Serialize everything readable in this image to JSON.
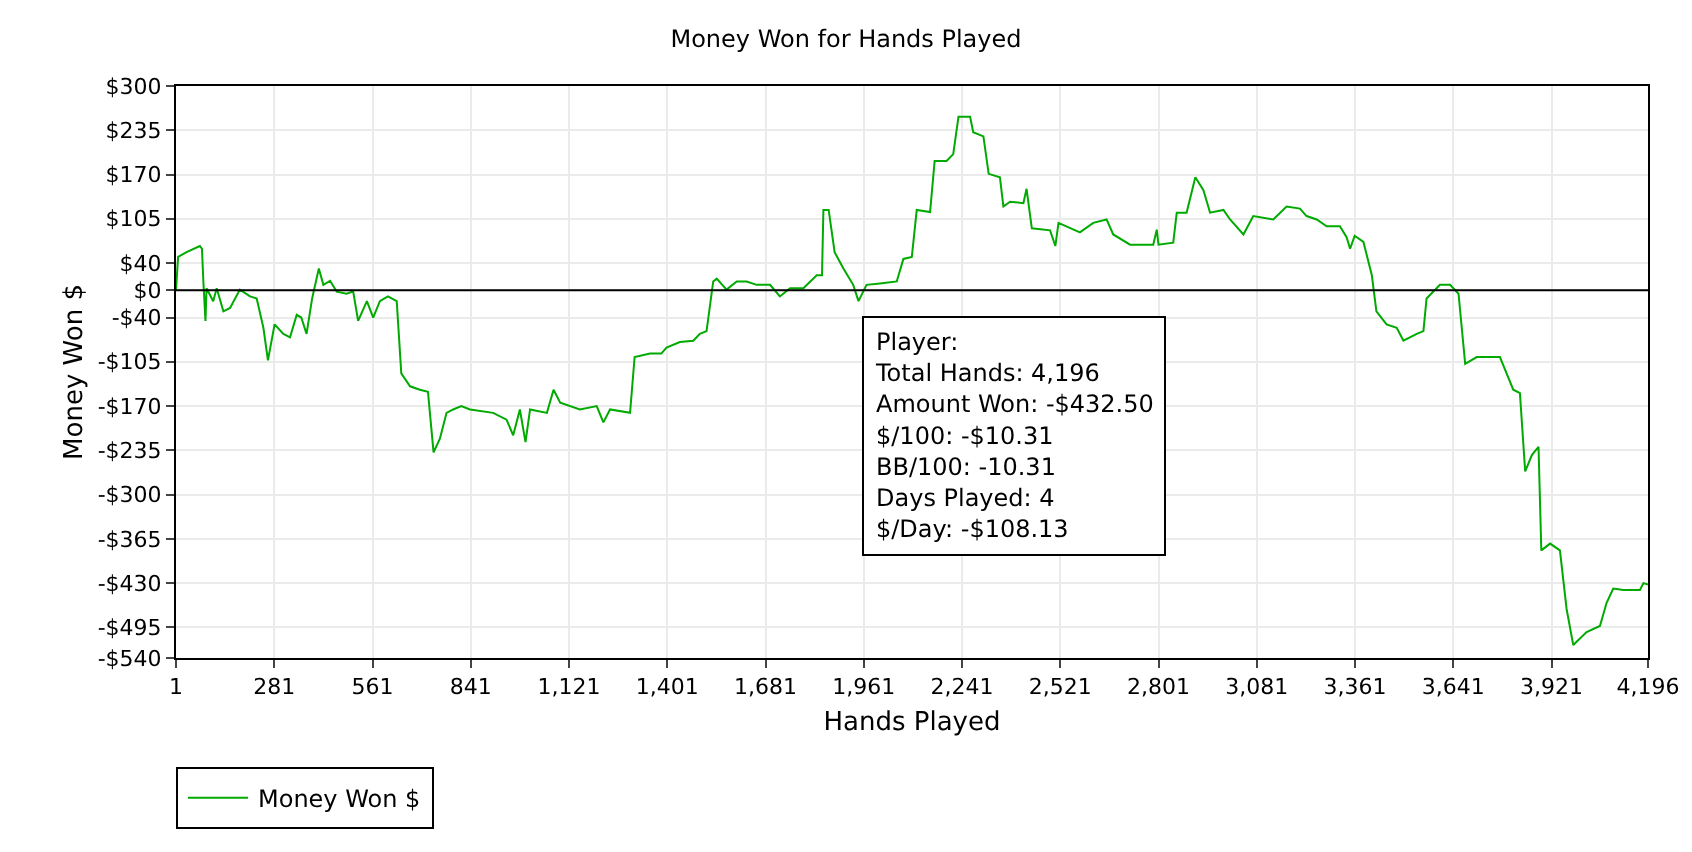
{
  "chart_data": {
    "type": "line",
    "title": "Money Won for Hands Played",
    "xlabel": "Hands Played",
    "ylabel": "Money Won $",
    "annotations": [
      "Player:\nTotal Hands: 4,196\nAmount Won: -$432.50\n$/100: -$10.31\nBB/100: -10.31\nDays Played: 4\n$/Day: -$108.13"
    ],
    "series": [
      {
        "name": "Money Won $",
        "color": "#00aa00",
        "x": [
          1,
          7,
          31,
          69,
          75,
          79,
          85,
          88,
          107,
          117,
          136,
          155,
          183,
          212,
          231,
          250,
          263,
          282,
          307,
          326,
          345,
          358,
          373,
          389,
          408,
          421,
          440,
          459,
          487,
          506,
          520,
          545,
          563,
          582,
          605,
          630,
          643,
          668,
          696,
          719,
          735,
          753,
          772,
          791,
          814,
          839,
          905,
          943,
          962,
          981,
          997,
          1010,
          1058,
          1077,
          1096,
          1152,
          1200,
          1219,
          1238,
          1295,
          1308,
          1352,
          1384,
          1399,
          1437,
          1475,
          1494,
          1513,
          1532,
          1542,
          1570,
          1599,
          1627,
          1656,
          1694,
          1722,
          1751,
          1789,
          1827,
          1842,
          1846,
          1861,
          1878,
          1903,
          1931,
          1946,
          1969,
          2007,
          2055,
          2074,
          2098,
          2112,
          2150,
          2163,
          2197,
          2216,
          2231,
          2264,
          2273,
          2302,
          2317,
          2349,
          2359,
          2378,
          2416,
          2425,
          2440,
          2492,
          2507,
          2516,
          2577,
          2615,
          2653,
          2672,
          2720,
          2786,
          2796,
          2801,
          2843,
          2853,
          2881,
          2906,
          2929,
          2948,
          2986,
          3005,
          3043,
          3071,
          3128,
          3166,
          3204,
          3223,
          3252,
          3280,
          3318,
          3337,
          3347,
          3360,
          3385,
          3409,
          3422,
          3451,
          3480,
          3499,
          3537,
          3556,
          3565,
          3603,
          3632,
          3656,
          3675,
          3708,
          3774,
          3793,
          3812,
          3831,
          3846,
          3865,
          3884,
          3892,
          3917,
          3945,
          3964,
          3983,
          4021,
          4059,
          4078,
          4097,
          4126,
          4173,
          4183,
          4196
        ],
        "values": [
          0,
          49,
          56,
          65,
          61,
          13,
          -45,
          3,
          -16,
          3,
          -31,
          -26,
          1,
          -9,
          -12,
          -55,
          -103,
          -50,
          -64,
          -69,
          -36,
          -40,
          -64,
          -12,
          32,
          8,
          14,
          -2,
          -5,
          -2,
          -45,
          -16,
          -40,
          -16,
          -9,
          -16,
          -122,
          -141,
          -146,
          -149,
          -238,
          -218,
          -180,
          -175,
          -170,
          -175,
          -180,
          -190,
          -213,
          -175,
          -223,
          -175,
          -180,
          -146,
          -165,
          -175,
          -170,
          -194,
          -175,
          -180,
          -98,
          -93,
          -93,
          -84,
          -76,
          -74,
          -64,
          -60,
          13,
          17,
          1,
          13,
          13,
          8,
          8,
          -9,
          3,
          3,
          22,
          22,
          118,
          118,
          56,
          32,
          8,
          -16,
          8,
          10,
          13,
          46,
          49,
          118,
          115,
          190,
          190,
          200,
          255,
          255,
          232,
          226,
          171,
          166,
          123,
          130,
          128,
          149,
          91,
          88,
          65,
          99,
          85,
          99,
          104,
          82,
          67,
          67,
          89,
          67,
          70,
          114,
          114,
          166,
          147,
          114,
          118,
          104,
          82,
          109,
          104,
          123,
          120,
          109,
          104,
          94,
          94,
          78,
          61,
          80,
          71,
          22,
          -31,
          -50,
          -55,
          -74,
          -64,
          -60,
          -12,
          8,
          8,
          -5,
          -108,
          -98,
          -98,
          -122,
          -146,
          -151,
          -266,
          -242,
          -230,
          -382,
          -372,
          -382,
          -468,
          -521,
          -502,
          -493,
          -459,
          -438,
          -440,
          -440,
          -430,
          -432
        ]
      }
    ],
    "xlim": [
      1,
      4196
    ],
    "xticks": [
      {
        "value": 1,
        "label": "1"
      },
      {
        "value": 281,
        "label": "281"
      },
      {
        "value": 561,
        "label": "561"
      },
      {
        "value": 841,
        "label": "841"
      },
      {
        "value": 1121,
        "label": "1,121"
      },
      {
        "value": 1401,
        "label": "1,401"
      },
      {
        "value": 1681,
        "label": "1,681"
      },
      {
        "value": 1961,
        "label": "1,961"
      },
      {
        "value": 2241,
        "label": "2,241"
      },
      {
        "value": 2521,
        "label": "2,521"
      },
      {
        "value": 2801,
        "label": "2,801"
      },
      {
        "value": 3081,
        "label": "3,081"
      },
      {
        "value": 3361,
        "label": "3,361"
      },
      {
        "value": 3641,
        "label": "3,641"
      },
      {
        "value": 3921,
        "label": "3,921"
      },
      {
        "value": 4196,
        "label": "4,196"
      }
    ],
    "ylim": [
      -540,
      300
    ],
    "yticks": [
      {
        "value": 300,
        "label": "$300"
      },
      {
        "value": 235,
        "label": "$235"
      },
      {
        "value": 170,
        "label": "$170"
      },
      {
        "value": 105,
        "label": "$105"
      },
      {
        "value": 40,
        "label": "$40"
      },
      {
        "value": 0,
        "label": "$0"
      },
      {
        "value": -40,
        "label": "-$40"
      },
      {
        "value": -105,
        "label": "-$105"
      },
      {
        "value": -170,
        "label": "-$170"
      },
      {
        "value": -235,
        "label": "-$235"
      },
      {
        "value": -300,
        "label": "-$300"
      },
      {
        "value": -365,
        "label": "-$365"
      },
      {
        "value": -430,
        "label": "-$430"
      },
      {
        "value": -495,
        "label": "-$495"
      },
      {
        "value": -540,
        "label": "-$540"
      }
    ],
    "ref_lines": [
      {
        "axis": "y",
        "value": 0,
        "color": "#000000"
      }
    ],
    "grid": true,
    "legend": "bottom left"
  }
}
